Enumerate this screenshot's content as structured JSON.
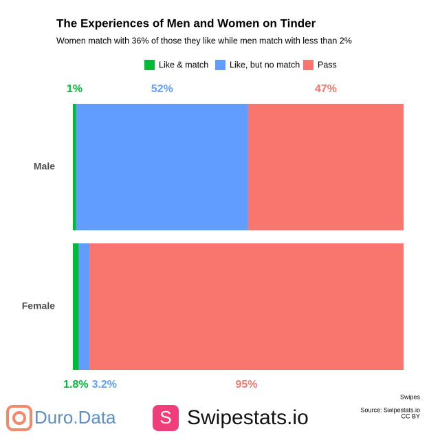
{
  "chart_data": {
    "type": "stacked-bar-horizontal",
    "title": "The Experiences of Men and Women on Tinder",
    "subtitle": "Women match with 36% of those they like while men match with less than 2%",
    "categories": [
      "Male",
      "Female"
    ],
    "series": [
      {
        "name": "Like & match",
        "color": "#00ba38",
        "values": [
          1,
          1.8
        ],
        "value_labels": [
          "1%",
          "1.8%"
        ]
      },
      {
        "name": "Like, but no match",
        "color": "#619cff",
        "values": [
          52,
          3.2
        ],
        "value_labels": [
          "52%",
          "3.2%"
        ]
      },
      {
        "name": "Pass",
        "color": "#f8766d",
        "values": [
          47,
          95
        ],
        "value_labels": [
          "47%",
          "95%"
        ]
      }
    ],
    "legend": "top",
    "x_label": "Swipes",
    "caption": [
      "Source: Swipestats.io",
      "CC BY"
    ]
  },
  "footer": {
    "brand_1": "Duro.Data",
    "brand_2_icon": "S",
    "brand_2": "Swipestats.io"
  }
}
